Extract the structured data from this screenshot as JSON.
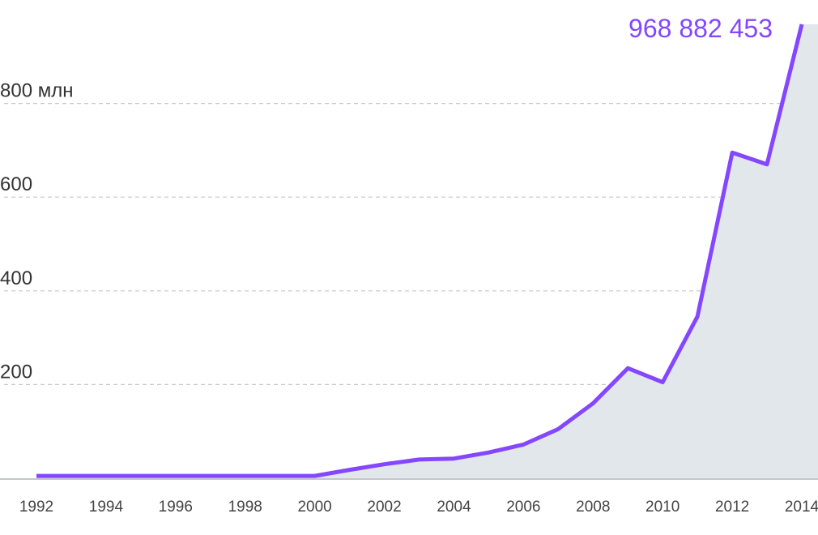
{
  "chart_data": {
    "type": "area",
    "title": "",
    "xlabel": "",
    "ylabel": "",
    "x": [
      1992,
      1993,
      1994,
      1995,
      1996,
      1997,
      1998,
      1999,
      2000,
      2001,
      2002,
      2003,
      2004,
      2005,
      2006,
      2007,
      2008,
      2009,
      2010,
      2011,
      2012,
      2013,
      2014
    ],
    "values": [
      5,
      5,
      5,
      5,
      5,
      5,
      5,
      5,
      5,
      18,
      30,
      40,
      42,
      55,
      72,
      105,
      160,
      235,
      205,
      345,
      695,
      670,
      968.882453
    ],
    "ylim": [
      0,
      968.882453
    ],
    "xlim": [
      1992,
      2014
    ],
    "y_ticks": [
      {
        "value": 200,
        "label": "200"
      },
      {
        "value": 400,
        "label": "400"
      },
      {
        "value": 600,
        "label": "600"
      },
      {
        "value": 800,
        "label": "800 млн"
      }
    ],
    "x_ticks": [
      "1992",
      "1994",
      "1996",
      "1998",
      "2000",
      "2002",
      "2004",
      "2006",
      "2008",
      "2010",
      "2012",
      "2014"
    ],
    "grid": true,
    "end_label": "968 882 453",
    "colors": {
      "line": "#8447ff",
      "area": "#e2e7ec",
      "end_label": "#8447ff",
      "grid": "#c8c8c8",
      "baseline": "#b0b6bc"
    }
  }
}
